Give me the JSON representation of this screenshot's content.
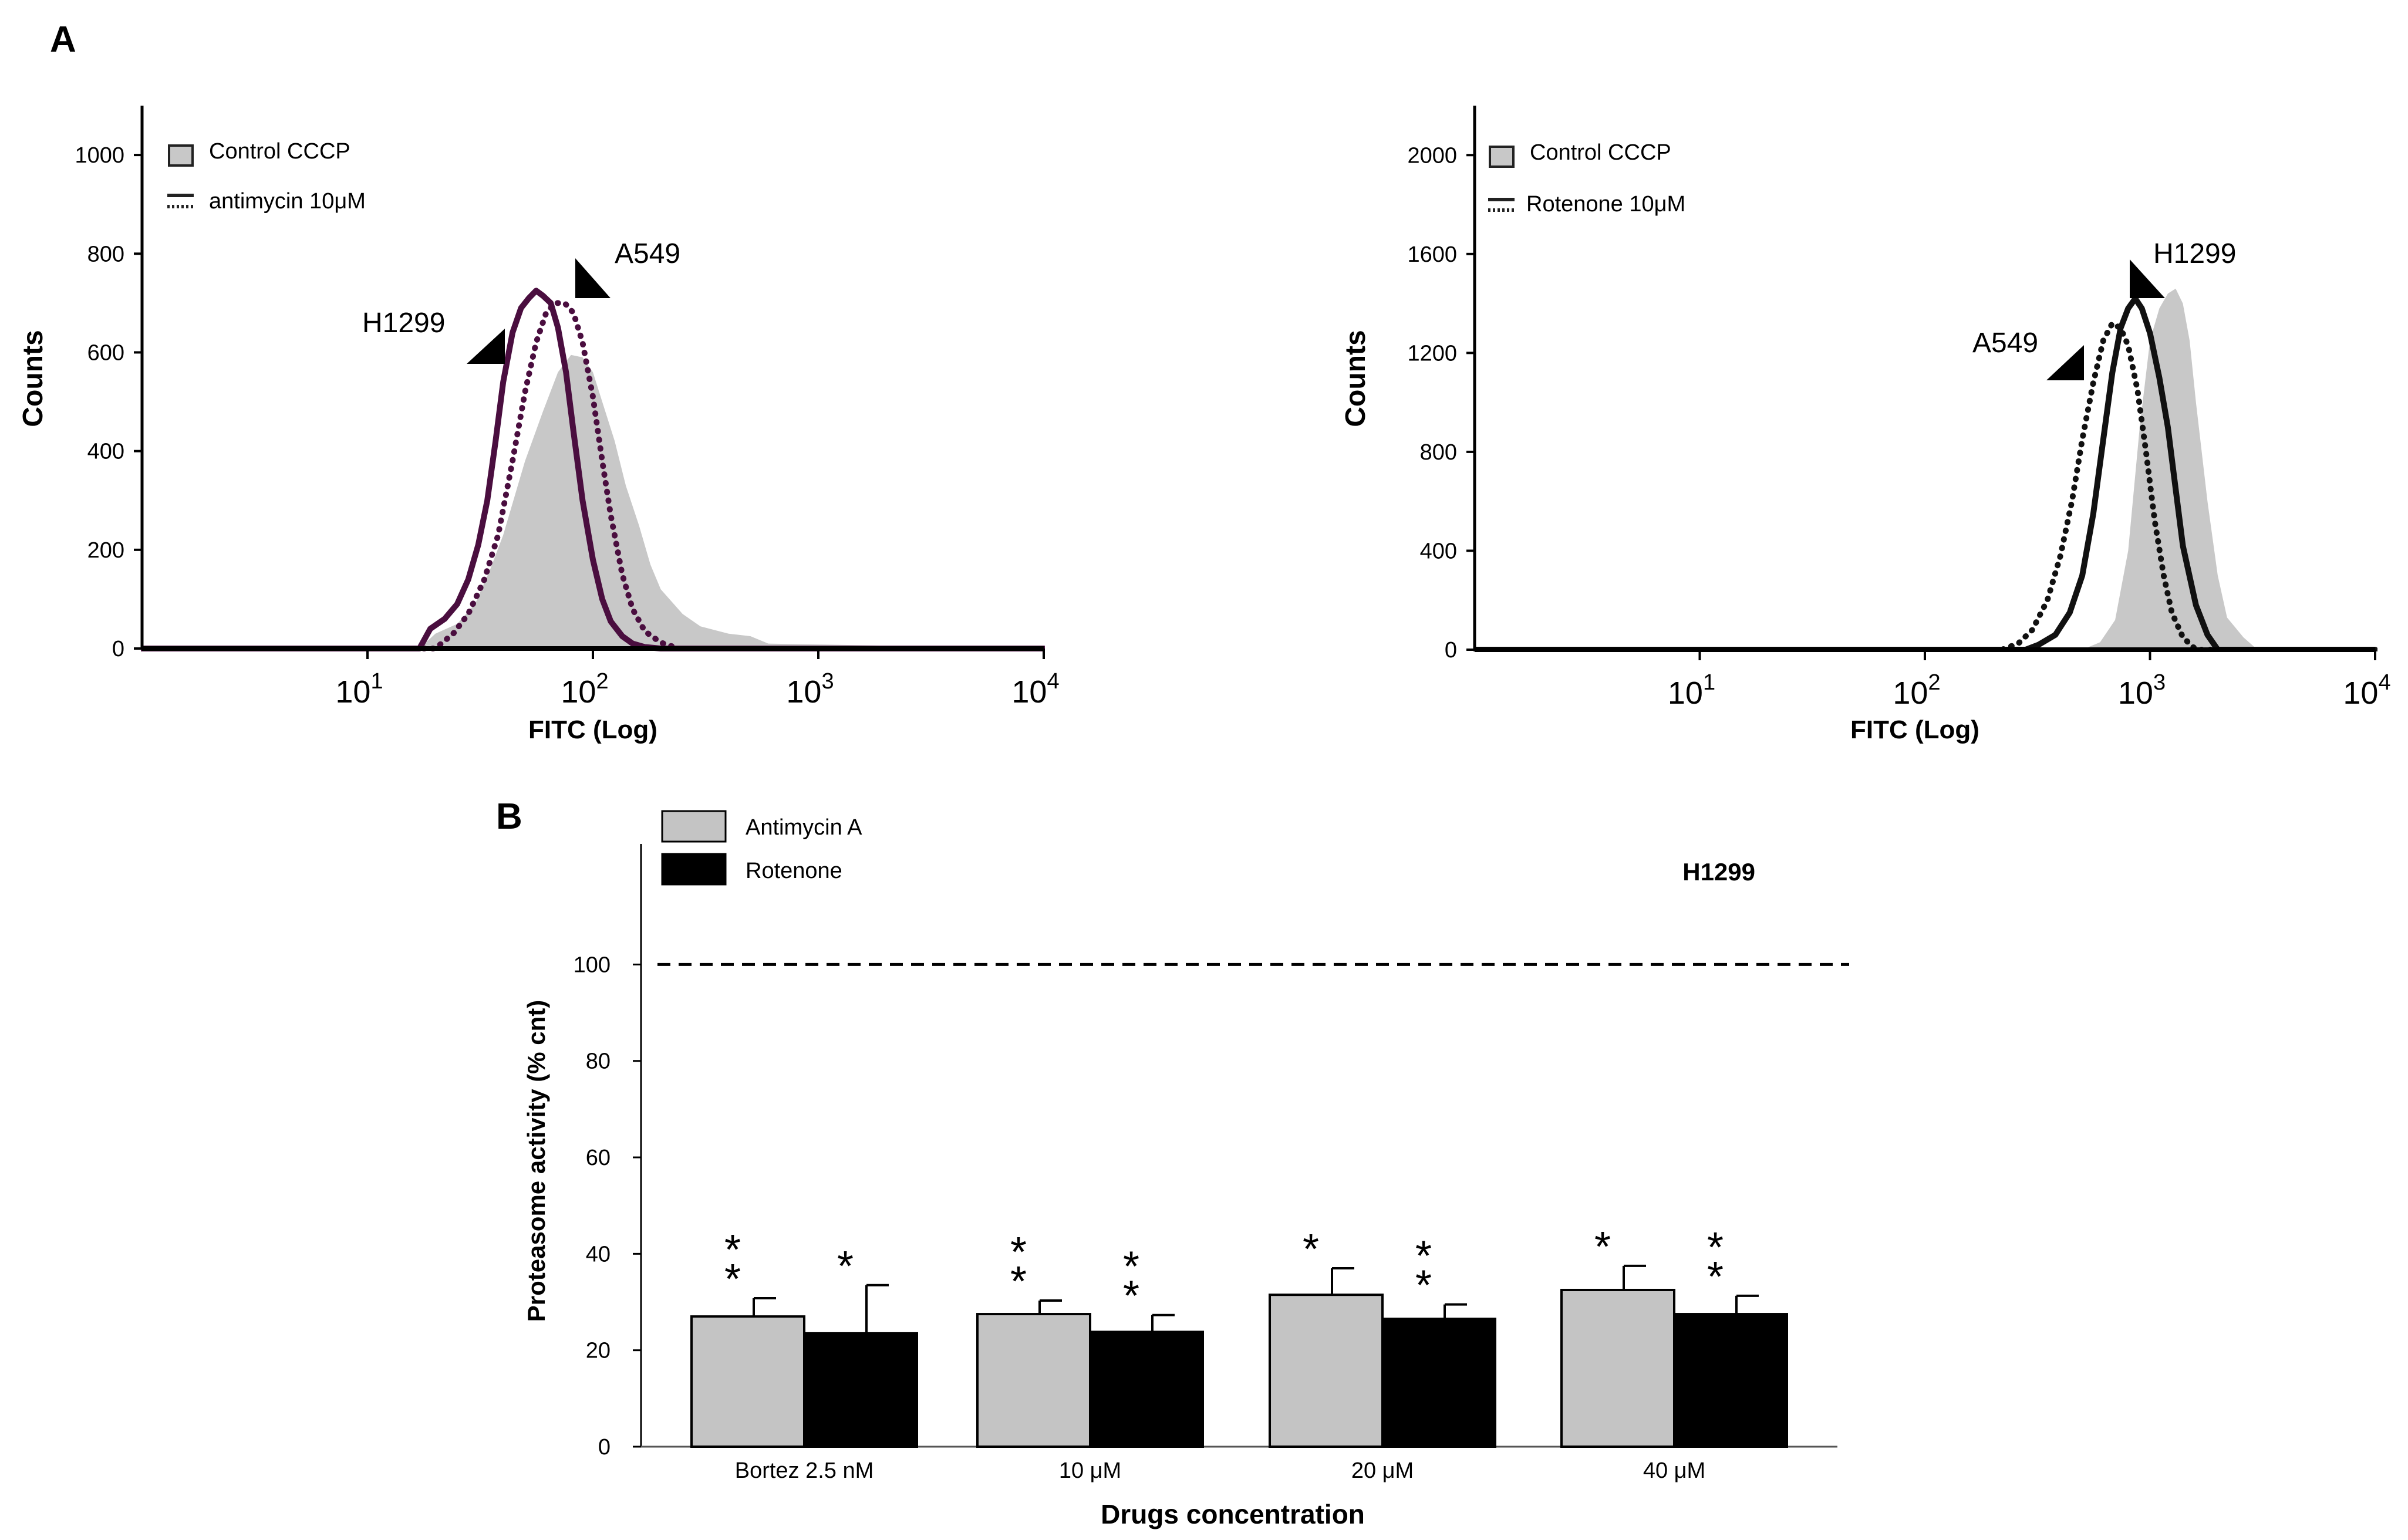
{
  "figure": {
    "panel_a_label": "A",
    "panel_b_label": "B"
  },
  "colors": {
    "control_fill": "#c8c8c8",
    "antimycin_line": "#4a0e3f",
    "rotenone_line": "#111111",
    "bar_gray": "#c4c4c4",
    "bar_black": "#000000",
    "axis": "#000000"
  },
  "chart_data": [
    {
      "id": "A-left",
      "type": "line",
      "title": "",
      "xlabel": "FITC (Log)",
      "ylabel": "Counts",
      "x_scale": "log",
      "xlim": [
        1,
        10000
      ],
      "ylim": [
        0,
        1100
      ],
      "x_ticks": [
        {
          "value": 10,
          "base": "10",
          "exp": "1"
        },
        {
          "value": 100,
          "base": "10",
          "exp": "2"
        },
        {
          "value": 1000,
          "base": "10",
          "exp": "3"
        },
        {
          "value": 10000,
          "base": "10",
          "exp": "4"
        }
      ],
      "y_ticks": [
        0,
        200,
        400,
        600,
        800,
        1000
      ],
      "legend": [
        {
          "label": "Control CCCP",
          "style": "filled-gray-box"
        },
        {
          "label": "antimycin 10μM",
          "style": "solid-and-dotted-lines"
        }
      ],
      "annotations": [
        {
          "text": "H1299",
          "points_to_series": "H1299"
        },
        {
          "text": "A549",
          "points_to_series": "A549"
        }
      ],
      "series": [
        {
          "name": "Control CCCP",
          "style": "filled",
          "x": [
            1,
            17,
            20,
            25,
            30,
            35,
            40,
            50,
            60,
            70,
            80,
            90,
            100,
            110,
            125,
            140,
            160,
            180,
            200,
            250,
            300,
            400,
            500,
            600,
            10000
          ],
          "y": [
            0,
            0,
            30,
            50,
            90,
            160,
            230,
            380,
            480,
            560,
            595,
            590,
            560,
            500,
            420,
            330,
            250,
            170,
            120,
            70,
            45,
            30,
            25,
            10,
            0
          ]
        },
        {
          "name": "H1299",
          "style": "solid",
          "x": [
            1,
            17,
            19,
            22,
            25,
            28,
            31,
            34,
            37,
            40,
            44,
            48,
            52,
            56,
            60,
            65,
            70,
            76,
            82,
            90,
            100,
            110,
            120,
            135,
            150,
            170,
            200,
            10000
          ],
          "y": [
            0,
            0,
            40,
            60,
            90,
            140,
            210,
            300,
            420,
            540,
            640,
            690,
            710,
            725,
            715,
            700,
            650,
            560,
            440,
            300,
            180,
            100,
            55,
            25,
            10,
            3,
            0,
            0
          ]
        },
        {
          "name": "A549",
          "style": "dotted",
          "x": [
            1,
            20,
            24,
            28,
            33,
            38,
            44,
            50,
            56,
            62,
            68,
            75,
            82,
            90,
            100,
            110,
            120,
            135,
            150,
            170,
            200,
            240,
            10000
          ],
          "y": [
            0,
            0,
            30,
            70,
            140,
            230,
            380,
            520,
            620,
            680,
            700,
            700,
            680,
            620,
            510,
            380,
            270,
            150,
            80,
            35,
            12,
            0,
            0
          ]
        }
      ]
    },
    {
      "id": "A-right",
      "type": "line",
      "title": "",
      "xlabel": "FITC (Log)",
      "ylabel": "Counts",
      "x_scale": "log",
      "xlim": [
        1,
        10000
      ],
      "ylim": [
        0,
        2200
      ],
      "x_ticks": [
        {
          "value": 10,
          "base": "10",
          "exp": "1"
        },
        {
          "value": 100,
          "base": "10",
          "exp": "2"
        },
        {
          "value": 1000,
          "base": "10",
          "exp": "3"
        },
        {
          "value": 10000,
          "base": "10",
          "exp": "4"
        }
      ],
      "y_ticks": [
        0,
        400,
        800,
        1200,
        1600,
        2000
      ],
      "legend": [
        {
          "label": "Control CCCP",
          "style": "filled-gray-box"
        },
        {
          "label": "Rotenone 10μM",
          "style": "solid-and-dotted-lines"
        }
      ],
      "annotations": [
        {
          "text": "H1299",
          "points_to_series": "H1299"
        },
        {
          "text": "A549",
          "points_to_series": "A549"
        }
      ],
      "series": [
        {
          "name": "Control CCCP",
          "style": "filled",
          "x": [
            1,
            500,
            600,
            700,
            800,
            900,
            1000,
            1100,
            1200,
            1300,
            1400,
            1500,
            1600,
            1800,
            2000,
            2200,
            2600,
            3000,
            10000
          ],
          "y": [
            0,
            0,
            30,
            120,
            400,
            900,
            1250,
            1380,
            1440,
            1460,
            1400,
            1250,
            1000,
            600,
            300,
            130,
            50,
            0,
            0
          ]
        },
        {
          "name": "H1299",
          "style": "solid",
          "x": [
            1,
            280,
            320,
            380,
            440,
            500,
            560,
            620,
            680,
            740,
            800,
            860,
            920,
            1000,
            1100,
            1200,
            1300,
            1400,
            1600,
            1800,
            2000,
            10000
          ],
          "y": [
            0,
            0,
            20,
            60,
            150,
            300,
            550,
            850,
            1120,
            1300,
            1380,
            1420,
            1380,
            1280,
            1100,
            900,
            650,
            420,
            180,
            60,
            0,
            0
          ]
        },
        {
          "name": "A549",
          "style": "dotted",
          "x": [
            1,
            220,
            260,
            300,
            350,
            400,
            450,
            500,
            560,
            620,
            680,
            740,
            800,
            880,
            960,
            1050,
            1150,
            1250,
            1400,
            1600,
            10000
          ],
          "y": [
            0,
            0,
            25,
            80,
            200,
            380,
            600,
            850,
            1080,
            1250,
            1320,
            1300,
            1230,
            1050,
            800,
            520,
            300,
            150,
            50,
            0,
            0
          ]
        }
      ]
    },
    {
      "id": "B",
      "type": "bar",
      "title": "H1299",
      "xlabel": "Drugs concentration",
      "ylabel": "Proteasome activity (% cnt)",
      "ylim": [
        0,
        125
      ],
      "y_ticks": [
        0,
        20,
        40,
        60,
        80,
        100
      ],
      "reference_line": {
        "value": 100,
        "style": "dashed"
      },
      "categories": [
        "Bortez 2.5 nM",
        "10 μM",
        "20 μM",
        "40 μM"
      ],
      "series": [
        {
          "name": "Antimycin A",
          "color": "#c4c4c4",
          "values": [
            27,
            27.5,
            31.5,
            32.5
          ],
          "errors": [
            3.8,
            2.8,
            5.5,
            5
          ],
          "significance": [
            "**",
            "**",
            "*",
            "*"
          ]
        },
        {
          "name": "Rotenone",
          "color": "#000000",
          "values": [
            23.5,
            23.8,
            26.5,
            27.5
          ],
          "errors": [
            10,
            3.5,
            3,
            3.8
          ],
          "significance": [
            "*",
            "**",
            "**",
            "**"
          ]
        }
      ]
    }
  ]
}
